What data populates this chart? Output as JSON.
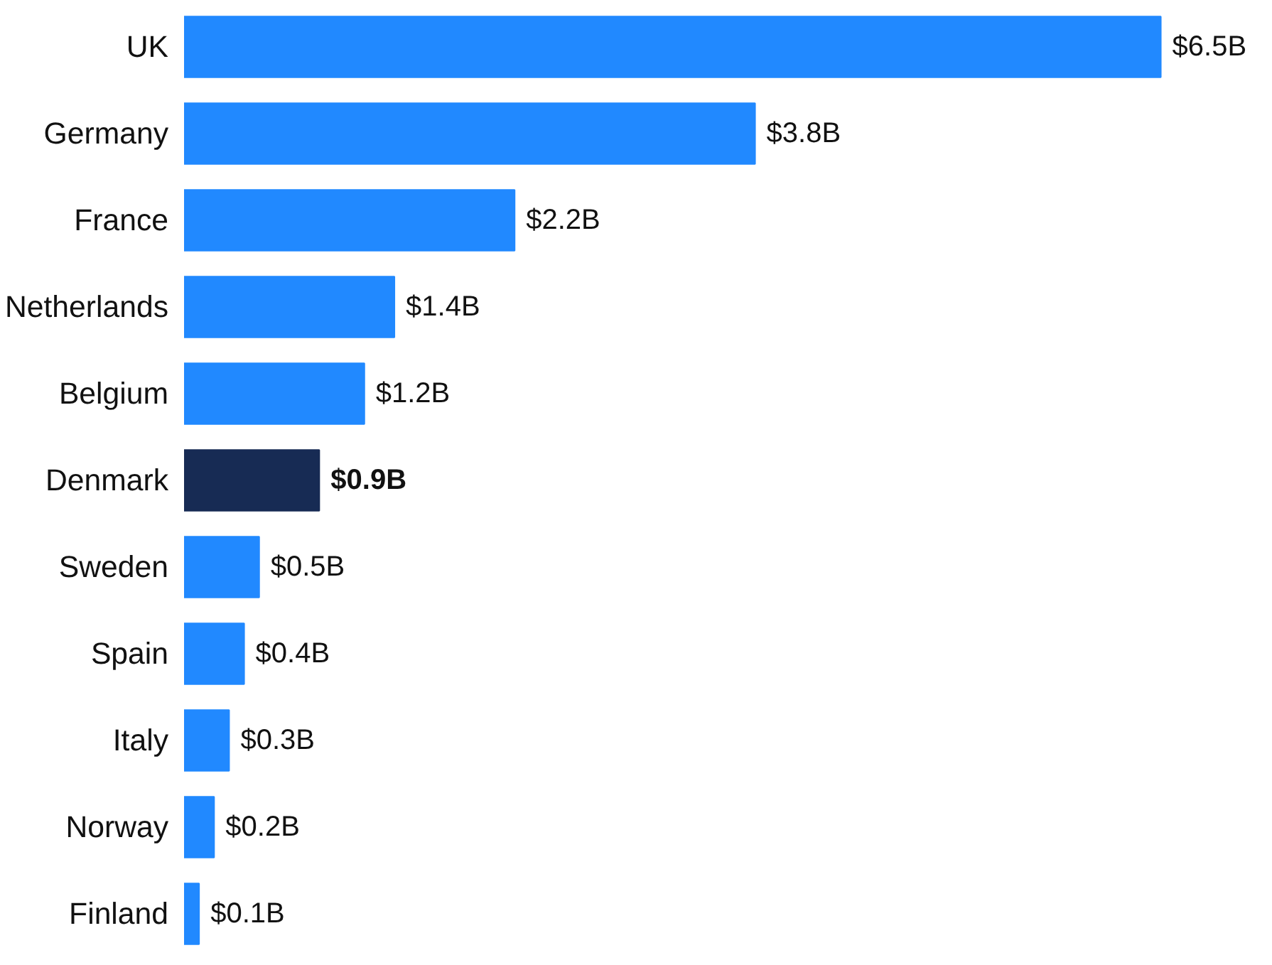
{
  "chart_data": {
    "type": "bar",
    "orientation": "horizontal",
    "categories": [
      "UK",
      "Germany",
      "France",
      "Netherlands",
      "Belgium",
      "Denmark",
      "Sweden",
      "Spain",
      "Italy",
      "Norway",
      "Finland"
    ],
    "values": [
      6.5,
      3.8,
      2.2,
      1.4,
      1.2,
      0.9,
      0.5,
      0.4,
      0.3,
      0.2,
      0.1
    ],
    "value_labels": [
      "$6.5B",
      "$3.8B",
      "$2.2B",
      "$1.4B",
      "$1.2B",
      "$0.9B",
      "$0.5B",
      "$0.4B",
      "$0.3B",
      "$0.2B",
      "$0.1B"
    ],
    "colors": [
      "#2189ff",
      "#2189ff",
      "#2189ff",
      "#2189ff",
      "#2189ff",
      "#172b54",
      "#2189ff",
      "#2189ff",
      "#2189ff",
      "#2189ff",
      "#2189ff"
    ]
  }
}
